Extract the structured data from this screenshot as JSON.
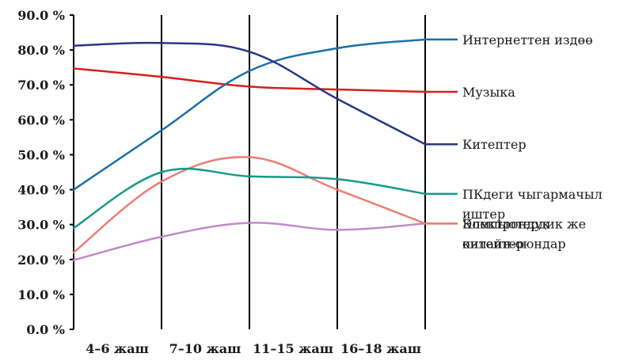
{
  "chart_data": {
    "type": "line",
    "categories": [
      "4–6 жаш",
      "7–10 жаш",
      "11–15 жаш",
      "16–18 жаш",
      ""
    ],
    "ylim": [
      0,
      90
    ],
    "yticks": [
      0,
      10,
      20,
      30,
      40,
      50,
      60,
      70,
      80,
      90
    ],
    "ytick_labels": [
      "0.0 %",
      "10.0 %",
      "20.0 %",
      "30.0 %",
      "40.0 %",
      "50.0 %",
      "60.0 %",
      "70.0 %",
      "80.0 %",
      "90.0 %"
    ],
    "grid": "vertical",
    "legend_position": "right",
    "series": [
      {
        "name": "Интернеттен издөө",
        "legend_lines": [
          "Интернеттен издөө"
        ],
        "color": "#1a6fa8",
        "values": [
          40,
          57,
          74,
          80.5,
          83
        ]
      },
      {
        "name": "Музыка",
        "legend_lines": [
          "Музыка"
        ],
        "color": "#d81e1e",
        "values": [
          74.7,
          72.3,
          69.5,
          68.7,
          68
        ]
      },
      {
        "name": "Китептер",
        "legend_lines": [
          "Китептер"
        ],
        "color": "#2b3585",
        "values": [
          81.2,
          82,
          79.5,
          66,
          53
        ]
      },
      {
        "name": "ПКдеги чыгармачыл иштер",
        "legend_lines": [
          "ПКдеги чыгармачыл",
          "иштер"
        ],
        "color": "#159a8a",
        "values": [
          29,
          45,
          43.8,
          43,
          38.8
        ]
      },
      {
        "name": "Электрондук китептер",
        "legend_lines": [
          "Электрондук",
          "китептер"
        ],
        "color": "#c08bc8",
        "values": [
          19.8,
          26.5,
          30.5,
          28.5,
          30.3
        ]
      },
      {
        "name": "Компьютердик же онлайн-оюндар",
        "legend_lines": [
          "Компьютердик же",
          "онлайн-оюндар"
        ],
        "color": "#ee7c74",
        "values": [
          22,
          42.3,
          49.3,
          40,
          30.3
        ]
      }
    ]
  }
}
